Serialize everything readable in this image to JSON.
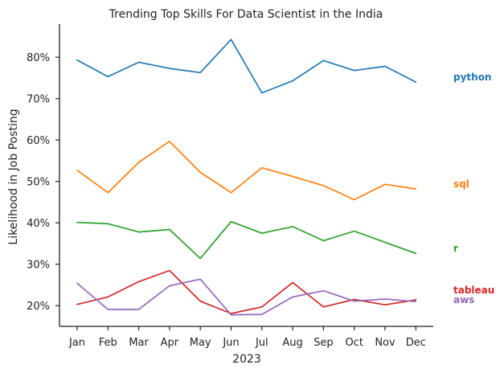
{
  "chart_data": {
    "type": "line",
    "title": "Trending Top Skills For Data Scientist in the India",
    "xlabel": "2023",
    "ylabel": "Likelihood in Job Posting",
    "categories": [
      "Jan",
      "Feb",
      "Mar",
      "Apr",
      "May",
      "Jun",
      "Jul",
      "Aug",
      "Sep",
      "Oct",
      "Nov",
      "Dec"
    ],
    "ylim": [
      15,
      88
    ],
    "yticks": [
      20,
      30,
      40,
      50,
      60,
      70,
      80
    ],
    "ytick_labels": [
      "20%",
      "30%",
      "40%",
      "50%",
      "60%",
      "70%",
      "80%"
    ],
    "grid": false,
    "legend": "direct labels at right end of each line",
    "series": [
      {
        "name": "python",
        "color": "#1f77b4",
        "values": [
          79.3,
          75.3,
          78.8,
          77.3,
          76.3,
          84.3,
          71.4,
          74.3,
          79.2,
          76.8,
          77.8,
          74.0
        ]
      },
      {
        "name": "sql",
        "color": "#ff7f0e",
        "values": [
          52.7,
          47.3,
          54.6,
          59.7,
          52.2,
          47.3,
          53.3,
          51.2,
          49.0,
          45.6,
          49.3,
          48.2
        ]
      },
      {
        "name": "r",
        "color": "#2ca02c",
        "values": [
          40.1,
          39.8,
          37.8,
          38.4,
          31.4,
          40.3,
          37.5,
          39.1,
          35.7,
          38.0,
          35.3,
          32.6
        ]
      },
      {
        "name": "tableau",
        "color": "#d62728",
        "values": [
          20.3,
          22.1,
          25.8,
          28.5,
          21.1,
          18.1,
          19.7,
          25.6,
          19.7,
          21.5,
          20.2,
          21.4
        ]
      },
      {
        "name": "aws",
        "color": "#9467bd",
        "values": [
          25.4,
          19.1,
          19.1,
          24.8,
          26.4,
          17.8,
          17.9,
          22.1,
          23.6,
          21.1,
          21.6,
          21.0
        ]
      }
    ]
  }
}
